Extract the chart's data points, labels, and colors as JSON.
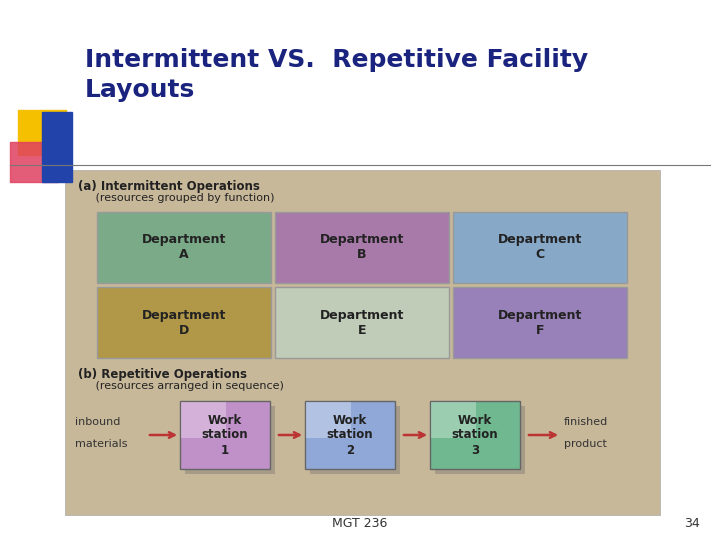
{
  "title_line1": "Intermittent VS.  Repetitive Facility",
  "title_line2": "Layouts",
  "title_color": "#1a237e",
  "bg_color": "#ffffff",
  "slide_bg": "#c8b89a",
  "section_a_label": "(a) Intermittent Operations",
  "section_a_sub": "     (resources grouped by function)",
  "section_b_label": "(b) Repetitive Operations",
  "section_b_sub": "     (resources arranged in sequence)",
  "dept_labels": [
    "Department\nA",
    "Department\nB",
    "Department\nC",
    "Department\nD",
    "Department\nE",
    "Department\nF"
  ],
  "dept_colors": [
    "#7aaa88",
    "#a87aaa",
    "#88a8c8",
    "#b09848",
    "#c0ccb8",
    "#9880b8"
  ],
  "workstation_labels": [
    "Work\nstation\n1",
    "Work\nstation\n2",
    "Work\nstation\n3"
  ],
  "workstation_colors": [
    "#c090c8",
    "#90a8d8",
    "#70b890"
  ],
  "footer_text": "MGT 236",
  "footer_num": "34",
  "inbound_text": "inbound\nmaterials",
  "finished_text": "finished\nproduct",
  "arrow_color": "#bb3333",
  "deco_yellow": "#f5c000",
  "deco_red": "#e04060",
  "deco_blue": "#2244aa"
}
